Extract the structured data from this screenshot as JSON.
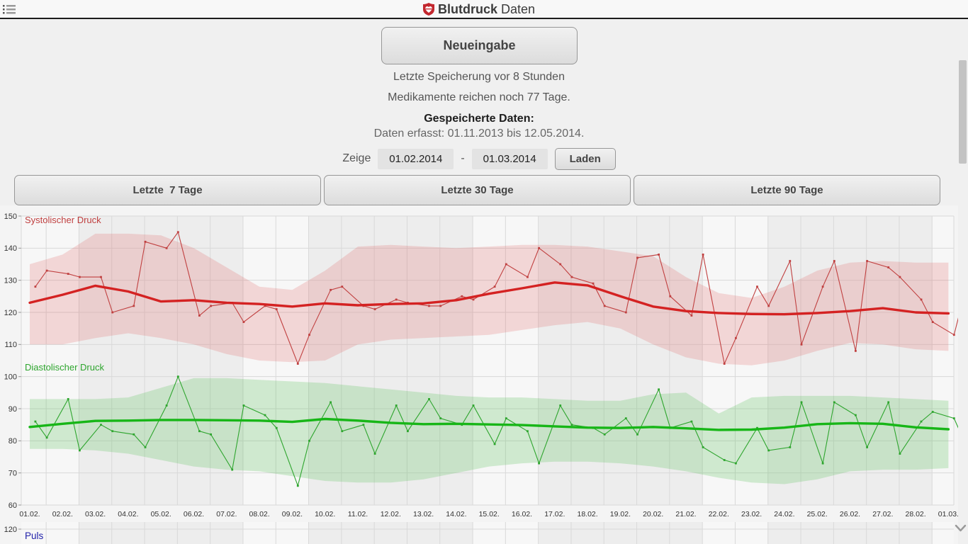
{
  "header": {
    "title_bold": "Blutdruck",
    "title_regular": "Daten",
    "logo_color": "#c3272e"
  },
  "status": {
    "last_save": "Letzte Speicherung vor 8 Stunden",
    "meds": "Medikamente reichen noch 77 Tage.",
    "stored_header": "Gespeicherte Daten:",
    "stored_range": "Daten erfasst: 01.11.2013 bis 12.05.2014.",
    "show_label": "Zeige",
    "range_sep": "-"
  },
  "actions": {
    "new_entry": "Neueingabe",
    "load": "Laden",
    "last7": "Letzte  7 Tage",
    "last30": "Letzte 30 Tage",
    "last90": "Letzte 90 Tage"
  },
  "date_range": {
    "from": "01.02.2014",
    "to": "01.03.2014"
  },
  "chart_data": [
    {
      "type": "line",
      "ylim": [
        60,
        150
      ],
      "yticks": [
        150,
        140,
        130,
        120,
        110,
        100,
        90,
        80,
        70,
        60
      ],
      "x_labels": [
        "01.02.",
        "02.02.",
        "03.02.",
        "04.02.",
        "05.02.",
        "06.02.",
        "07.02.",
        "08.02.",
        "09.02.",
        "10.02.",
        "11.02.",
        "12.02.",
        "13.02.",
        "14.02.",
        "15.02.",
        "16.02.",
        "17.02.",
        "18.02.",
        "19.02.",
        "20.02.",
        "21.02.",
        "22.02.",
        "23.02.",
        "24.02.",
        "25.02.",
        "26.02.",
        "27.02.",
        "28.02.",
        "01.03."
      ],
      "shaded_weekend_ranges": [
        [
          0,
          1
        ],
        [
          7,
          8
        ],
        [
          14,
          15
        ],
        [
          21,
          22
        ],
        [
          28,
          28
        ]
      ],
      "points_per_day": 2,
      "series": [
        {
          "name": "Systolischer Druck",
          "metric": "systolic",
          "role": "measurements",
          "color": "#c04040",
          "values": [
            128,
            133,
            132,
            131,
            131,
            120,
            122,
            142,
            140,
            145,
            119,
            122,
            123,
            117,
            122,
            121,
            104,
            113,
            127,
            128,
            122,
            121,
            124,
            123,
            122,
            122,
            125,
            124,
            128,
            135,
            131,
            140,
            135,
            131,
            129,
            122,
            120,
            137,
            138,
            125,
            119,
            138,
            104,
            112,
            128,
            122,
            136,
            110,
            128,
            136,
            108,
            136,
            134,
            131,
            124,
            117,
            113,
            127
          ]
        },
        {
          "metric": "systolic",
          "role": "trend",
          "color": "#d42222",
          "values": [
            123.0,
            125.5,
            128.3,
            126.5,
            123.4,
            123.8,
            123.0,
            122.6,
            121.8,
            122.8,
            122.2,
            122.6,
            122.8,
            123.8,
            125.8,
            127.5,
            129.3,
            128.4,
            125.0,
            121.8,
            120.4,
            119.8,
            119.5,
            119.4,
            119.8,
            120.4,
            121.3,
            120.0,
            119.7
          ]
        },
        {
          "metric": "systolic",
          "role": "band",
          "color": "#dd4444",
          "min": [
            110,
            110,
            112,
            113.5,
            112,
            110,
            107,
            105,
            104.5,
            105,
            110,
            111.5,
            112,
            112.5,
            113,
            114.5,
            116,
            117,
            115,
            110,
            106,
            104,
            103.5,
            105,
            108,
            110.5,
            110,
            108.5,
            108
          ],
          "max": [
            135,
            138,
            144.5,
            144.5,
            144,
            140,
            134,
            128,
            127,
            133,
            140.5,
            141,
            140.5,
            140,
            140.5,
            141,
            141,
            140.5,
            139,
            137.5,
            131,
            126,
            124.5,
            128,
            133,
            135.5,
            136,
            135.5,
            135.5
          ]
        },
        {
          "name": "Diastolischer Druck",
          "metric": "diastolic",
          "role": "measurements",
          "color": "#2ea52e",
          "values": [
            86,
            81,
            93,
            77,
            85,
            83,
            82,
            78,
            91,
            100,
            83,
            82,
            71,
            91,
            88,
            84,
            66,
            80,
            92,
            83,
            85,
            76,
            91,
            83,
            93,
            87,
            85,
            91,
            79,
            87,
            83,
            73,
            91,
            85,
            84,
            82,
            87,
            82,
            96,
            84,
            86,
            78,
            74,
            73,
            84,
            77,
            78,
            92,
            73,
            92,
            88,
            78,
            92,
            76,
            86,
            89,
            87,
            79
          ]
        },
        {
          "metric": "diastolic",
          "role": "trend",
          "color": "#17b617",
          "values": [
            84.3,
            85.3,
            86.2,
            86.3,
            86.5,
            86.5,
            86.4,
            86.3,
            85.9,
            86.8,
            86.3,
            85.6,
            85.2,
            85.3,
            85.1,
            84.9,
            84.5,
            84.1,
            84.0,
            84.3,
            83.9,
            83.4,
            83.5,
            84.1,
            85.2,
            85.5,
            85.3,
            84.2,
            83.6
          ]
        },
        {
          "metric": "diastolic",
          "role": "band",
          "color": "#44bb44",
          "min": [
            77.5,
            77.5,
            77,
            76,
            74,
            72,
            71,
            70.5,
            69,
            67.5,
            67,
            67,
            68,
            70,
            72,
            73,
            73.5,
            73.5,
            73,
            72,
            70.5,
            68.5,
            67,
            66.5,
            68,
            70.5,
            71,
            71,
            71.5
          ],
          "max": [
            93,
            93,
            93,
            93.5,
            96.5,
            99.5,
            99.5,
            99,
            98.5,
            98,
            97,
            96,
            95,
            94,
            93.5,
            93.5,
            93,
            92.5,
            92.5,
            94.5,
            95,
            88.5,
            93.5,
            94,
            94,
            94,
            93.5,
            93,
            92.5
          ]
        }
      ]
    },
    {
      "type": "line",
      "title": "Puls",
      "color": "#2222aa",
      "yticks": [
        120
      ]
    }
  ]
}
